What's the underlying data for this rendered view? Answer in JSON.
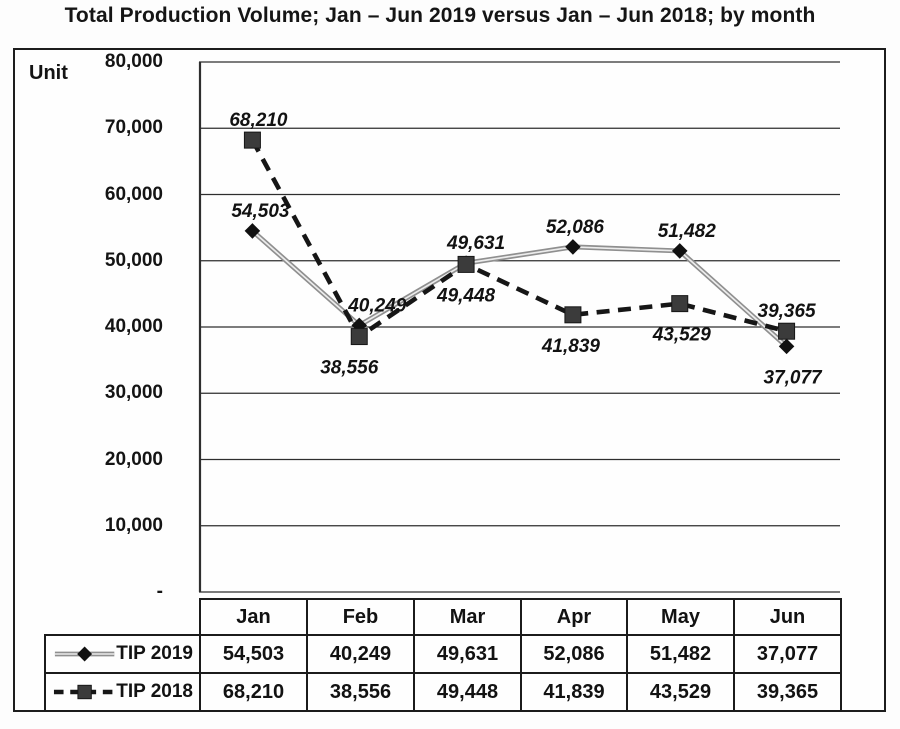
{
  "title": "Total Production Volume; Jan – Jun 2019 versus Jan – Jun 2018; by month",
  "y_axis": {
    "unit_label": "Unit",
    "tick_labels": [
      "80,000",
      "70,000",
      "60,000",
      "50,000",
      "40,000",
      "30,000",
      "20,000",
      "10,000",
      "-"
    ]
  },
  "colors": {
    "line_2019": "#8f8f8f",
    "line_2019_inner": "#ececec",
    "marker_2019": "#111111",
    "line_2018": "#161616",
    "marker_2018": "#3b3b3b",
    "grid": "#2e2e2e",
    "text": "#121212"
  },
  "chart_data": {
    "type": "line",
    "title": "Total Production Volume; Jan – Jun 2019 versus Jan – Jun 2018; by month",
    "xlabel": "",
    "ylabel": "Unit",
    "categories": [
      "Jan",
      "Feb",
      "Mar",
      "Apr",
      "May",
      "Jun"
    ],
    "series": [
      {
        "name": "TIP 2019",
        "values": [
          54503,
          40249,
          49631,
          52086,
          51482,
          37077
        ],
        "display_values": [
          "54,503",
          "40,249",
          "49,631",
          "52,086",
          "51,482",
          "37,077"
        ],
        "marker": "diamond",
        "line": "solid",
        "label_positions": [
          "above",
          "above",
          "above",
          "above",
          "above",
          "below"
        ],
        "label_dx": [
          8,
          18,
          10,
          2,
          7,
          6
        ]
      },
      {
        "name": "TIP 2018",
        "values": [
          68210,
          38556,
          49448,
          41839,
          43529,
          39365
        ],
        "display_values": [
          "68,210",
          "38,556",
          "49,448",
          "41,839",
          "43,529",
          "39,365"
        ],
        "marker": "square",
        "line": "dashed",
        "label_positions": [
          "above",
          "below",
          "below",
          "below",
          "below",
          "above"
        ],
        "label_dx": [
          6,
          -10,
          0,
          -2,
          2,
          0
        ]
      }
    ],
    "ylim": [
      0,
      80000
    ],
    "y_tick_step": 10000,
    "grid": true,
    "legend_position": "bottom-table-left"
  }
}
